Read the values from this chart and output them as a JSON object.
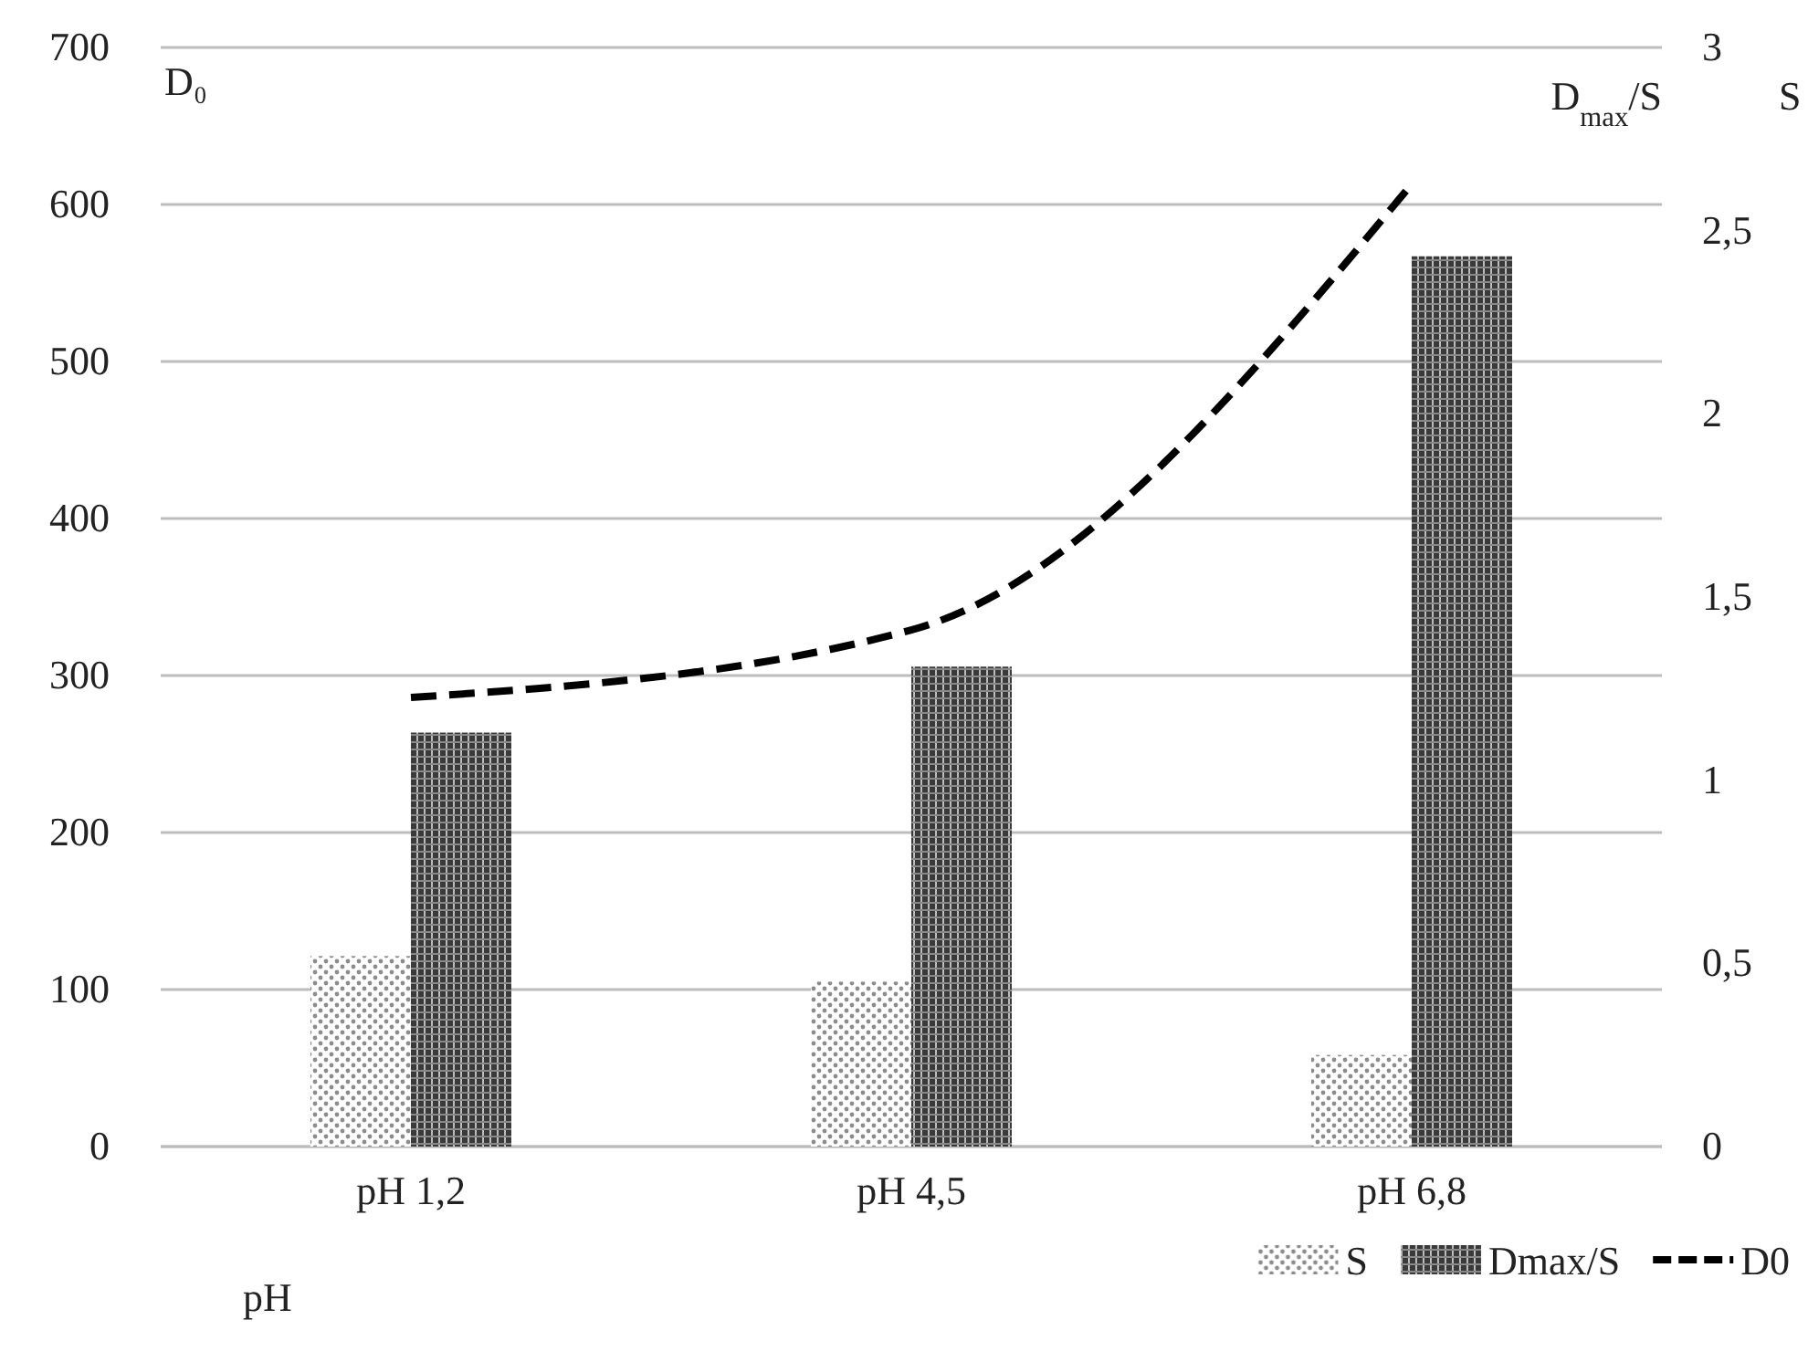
{
  "chart_data": {
    "type": "bar",
    "categories": [
      "pH 1,2",
      "pH 4,5",
      "pH 6,8"
    ],
    "series": [
      {
        "name": "S",
        "axis": "y2",
        "color": "#8c8c8c",
        "values": [
          0.52,
          0.45,
          0.25
        ]
      },
      {
        "name": "Dmax/S",
        "axis": "y2",
        "color": "#3a3a3a",
        "values": [
          1.13,
          1.31,
          2.43
        ]
      },
      {
        "name": "D0",
        "type": "line",
        "color": "#000000",
        "line_style": "dashed",
        "values": [
          286,
          329,
          613
        ]
      }
    ],
    "ylabel": "D₀",
    "y2label": "D$_{max}$/S",
    "xlabel": "pH",
    "annotations": [
      "S"
    ],
    "ylim": [
      0,
      700
    ],
    "yticks": [
      0,
      100,
      200,
      300,
      400,
      500,
      600,
      700
    ],
    "y2lim": [
      0,
      3
    ],
    "y2ticks": [
      0,
      {
        "value": 0.5,
        "label": "0,5"
      },
      1,
      {
        "value": 1.5,
        "label": "1,5"
      },
      2,
      {
        "value": 2.5,
        "label": "2,5"
      },
      3
    ],
    "grid": "y",
    "legend": "bottom right"
  }
}
